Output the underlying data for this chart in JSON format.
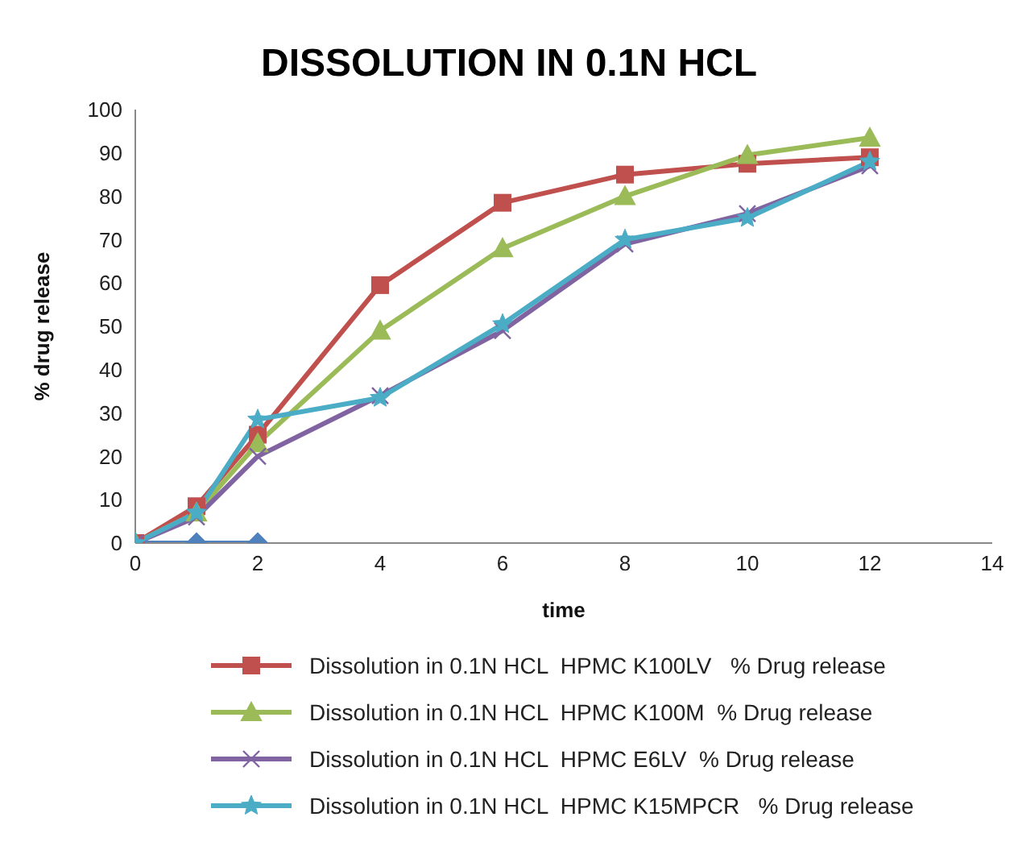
{
  "chart_data": {
    "type": "line",
    "title": "DISSOLUTION IN 0.1N HCL",
    "xlabel": "time",
    "ylabel": "% drug release",
    "x": [
      0,
      1,
      2,
      4,
      6,
      8,
      10,
      12
    ],
    "series": [
      {
        "x": [
          0,
          1,
          2
        ],
        "color": "#4f81bd",
        "marker": "diamond",
        "values": [
          0,
          0,
          0
        ]
      },
      {
        "name": "Dissolution in 0.1N HCL  HPMC K100LV   % Drug release",
        "color": "#c0504d",
        "marker": "square",
        "values": [
          0,
          8.5,
          25,
          59.5,
          78.5,
          85,
          87.5,
          89
        ]
      },
      {
        "name": "Dissolution in 0.1N HCL  HPMC K100M  % Drug release",
        "color": "#9bbb59",
        "marker": "triangle",
        "values": [
          0,
          7,
          23,
          49,
          68,
          80,
          89.5,
          93.5
        ]
      },
      {
        "name": "Dissolution in 0.1N HCL  HPMC E6LV  % Drug release",
        "color": "#8064a2",
        "marker": "cross",
        "values": [
          0,
          6,
          20,
          34,
          49,
          69,
          76,
          87
        ]
      },
      {
        "name": "Dissolution in 0.1N HCL  HPMC K15MPCR   % Drug release",
        "color": "#4bacc6",
        "marker": "star",
        "values": [
          0,
          7,
          28.5,
          33.5,
          50.5,
          70,
          75,
          88
        ]
      }
    ],
    "xlim": [
      0,
      14
    ],
    "xticks": [
      0,
      2,
      4,
      6,
      8,
      10,
      12,
      14
    ],
    "ylim": [
      0,
      100
    ],
    "yticks": [
      0,
      10,
      20,
      30,
      40,
      50,
      60,
      70,
      80,
      90,
      100
    ],
    "grid": false,
    "legend": "bottom"
  }
}
